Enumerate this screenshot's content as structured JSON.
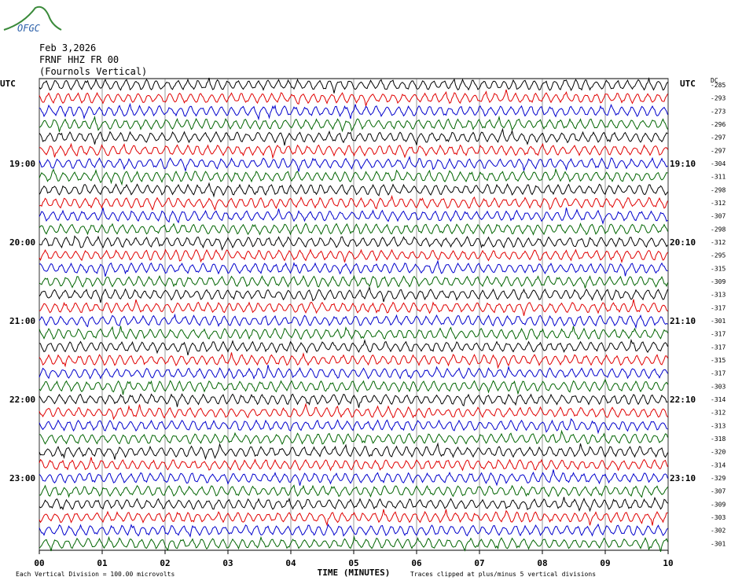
{
  "logo": "OFGC",
  "header": {
    "date": "Feb 3,2026",
    "station": "FRNF HHZ FR 00",
    "name": "(Fournols Vertical)"
  },
  "left_axis_title": "UTC",
  "right_axis_title": "UTC",
  "dc_title": "DC",
  "trace_colors": [
    "#000000",
    "#e00000",
    "#0000cc",
    "#006400"
  ],
  "rows": [
    {
      "dc": -285
    },
    {
      "dc": -293
    },
    {
      "dc": -273
    },
    {
      "dc": -296
    },
    {
      "dc": -297
    },
    {
      "dc": -297
    },
    {
      "dc": -304,
      "left": "19:00",
      "right": "19:10"
    },
    {
      "dc": -311
    },
    {
      "dc": -298
    },
    {
      "dc": -312
    },
    {
      "dc": -307
    },
    {
      "dc": -298
    },
    {
      "dc": -312,
      "left": "20:00",
      "right": "20:10"
    },
    {
      "dc": -295
    },
    {
      "dc": -315
    },
    {
      "dc": -309
    },
    {
      "dc": -313
    },
    {
      "dc": -317
    },
    {
      "dc": -301,
      "left": "21:00",
      "right": "21:10"
    },
    {
      "dc": -317
    },
    {
      "dc": -317
    },
    {
      "dc": -315
    },
    {
      "dc": -317
    },
    {
      "dc": -303
    },
    {
      "dc": -314,
      "left": "22:00",
      "right": "22:10"
    },
    {
      "dc": -312
    },
    {
      "dc": -313
    },
    {
      "dc": -318
    },
    {
      "dc": -320
    },
    {
      "dc": -314
    },
    {
      "dc": -329,
      "left": "23:00",
      "right": "23:10"
    },
    {
      "dc": -307
    },
    {
      "dc": -309
    },
    {
      "dc": -303
    },
    {
      "dc": -302
    },
    {
      "dc": -301
    }
  ],
  "x_ticks": [
    "00",
    "01",
    "02",
    "03",
    "04",
    "05",
    "06",
    "07",
    "08",
    "09",
    "10"
  ],
  "x_title": "TIME (MINUTES)",
  "footer_left": "Each Vertical Division =  100.00 microvolts",
  "footer_right": "Traces clipped at plus/minus 5 vertical divisions"
}
